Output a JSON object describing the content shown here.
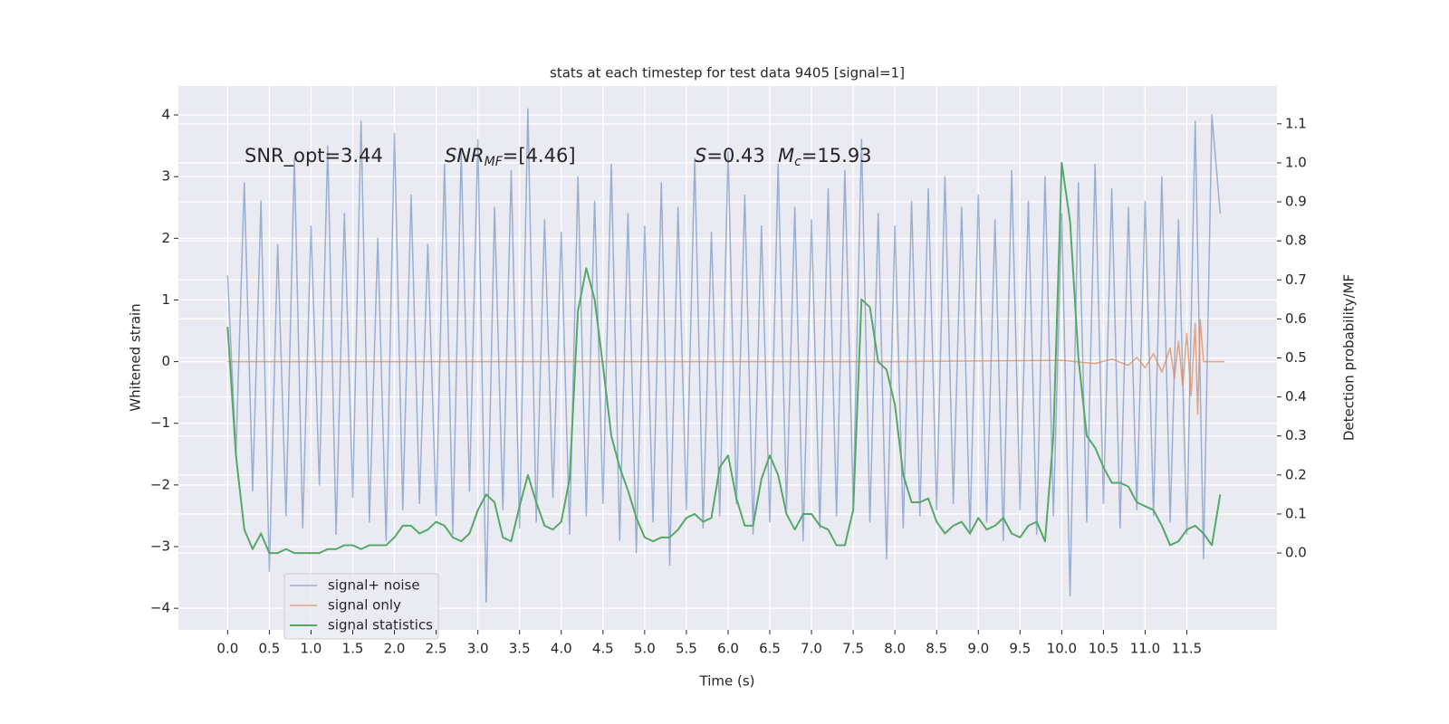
{
  "chart_data": {
    "type": "line",
    "title": "stats at each timestep for test data 9405 [signal=1]",
    "xlabel": "Time (s)",
    "ylabel": "Whitened strain",
    "y2label": "Detection probability/MF",
    "annotations": [
      {
        "parts": [
          "SNR_opt=3.44"
        ]
      },
      {
        "parts": [
          "SNR",
          "MF",
          "=[4.46]"
        ]
      },
      {
        "parts": [
          "S",
          "=0.43"
        ]
      },
      {
        "parts": [
          "M",
          "c",
          "=15.93"
        ]
      }
    ],
    "xlim": [
      -0.59,
      12.58
    ],
    "ylim": [
      -4.35,
      4.47
    ],
    "y2lim": [
      -0.197,
      1.197
    ],
    "xticks": [
      {
        "value": 0,
        "label": "0.0"
      },
      {
        "value": 0.5,
        "label": "0.5"
      },
      {
        "value": 1,
        "label": "1.0"
      },
      {
        "value": 1.5,
        "label": "1.5"
      },
      {
        "value": 2,
        "label": "2.0"
      },
      {
        "value": 2.5,
        "label": "2.5"
      },
      {
        "value": 3,
        "label": "3.0"
      },
      {
        "value": 3.5,
        "label": "3.5"
      },
      {
        "value": 4,
        "label": "4.0"
      },
      {
        "value": 4.5,
        "label": "4.5"
      },
      {
        "value": 5,
        "label": "5.0"
      },
      {
        "value": 5.5,
        "label": "5.5"
      },
      {
        "value": 6,
        "label": "6.0"
      },
      {
        "value": 6.5,
        "label": "6.5"
      },
      {
        "value": 7,
        "label": "7.0"
      },
      {
        "value": 7.5,
        "label": "7.5"
      },
      {
        "value": 8,
        "label": "8.0"
      },
      {
        "value": 8.5,
        "label": "8.5"
      },
      {
        "value": 9,
        "label": "9.0"
      },
      {
        "value": 9.5,
        "label": "9.5"
      },
      {
        "value": 10,
        "label": "10.0"
      },
      {
        "value": 10.5,
        "label": "10.5"
      },
      {
        "value": 11,
        "label": "11.0"
      },
      {
        "value": 11.5,
        "label": "11.5"
      }
    ],
    "yticks": [
      {
        "value": -4,
        "label": "−4"
      },
      {
        "value": -3,
        "label": "−3"
      },
      {
        "value": -2,
        "label": "−2"
      },
      {
        "value": -1,
        "label": "−1"
      },
      0,
      1,
      2,
      3,
      4
    ],
    "y2ticks": [
      {
        "value": 0,
        "label": "0.0"
      },
      {
        "value": 0.1,
        "label": "0.1"
      },
      {
        "value": 0.2,
        "label": "0.2"
      },
      {
        "value": 0.3,
        "label": "0.3"
      },
      {
        "value": 0.4,
        "label": "0.4"
      },
      {
        "value": 0.5,
        "label": "0.5"
      },
      {
        "value": 0.6,
        "label": "0.6"
      },
      {
        "value": 0.7,
        "label": "0.7"
      },
      {
        "value": 0.8,
        "label": "0.8"
      },
      {
        "value": 0.9,
        "label": "0.9"
      },
      {
        "value": 1,
        "label": "1.0"
      },
      {
        "value": 1.1,
        "label": "1.1"
      }
    ],
    "grid": true,
    "legend": "lower left",
    "series": [
      {
        "name": "signal+ noise",
        "color": "#4c72b0",
        "x": [
          0,
          0.1,
          0.2,
          0.3,
          0.4,
          0.5,
          0.6,
          0.7,
          0.8,
          0.9,
          1,
          1.1,
          1.2,
          1.3,
          1.4,
          1.5,
          1.6,
          1.7,
          1.8,
          1.9,
          2,
          2.1,
          2.2,
          2.3,
          2.4,
          2.5,
          2.6,
          2.7,
          2.8,
          2.9,
          3,
          3.1,
          3.2,
          3.3,
          3.4,
          3.5,
          3.6,
          3.7,
          3.8,
          3.9,
          4,
          4.1,
          4.2,
          4.3,
          4.4,
          4.5,
          4.6,
          4.7,
          4.8,
          4.9,
          5,
          5.1,
          5.2,
          5.3,
          5.4,
          5.5,
          5.6,
          5.7,
          5.8,
          5.9,
          6,
          6.1,
          6.2,
          6.3,
          6.4,
          6.5,
          6.6,
          6.7,
          6.8,
          6.9,
          7,
          7.1,
          7.2,
          7.3,
          7.4,
          7.5,
          7.6,
          7.7,
          7.8,
          7.9,
          8,
          8.1,
          8.2,
          8.3,
          8.4,
          8.5,
          8.6,
          8.7,
          8.8,
          8.9,
          9,
          9.1,
          9.2,
          9.3,
          9.4,
          9.5,
          9.6,
          9.7,
          9.8,
          9.9,
          10,
          10.1,
          10.2,
          10.3,
          10.4,
          10.5,
          10.6,
          10.7,
          10.8,
          10.9,
          11,
          11.1,
          11.2,
          11.3,
          11.4,
          11.5,
          11.6,
          11.7,
          11.8,
          11.9
        ],
        "values": [
          1.4,
          -1.5,
          2.9,
          -2.1,
          2.6,
          -3.4,
          1.9,
          -2.5,
          3.3,
          -2.7,
          2.2,
          -2.0,
          3.5,
          -2.8,
          2.4,
          -2.2,
          3.9,
          -2.6,
          2.0,
          -2.9,
          3.7,
          -2.4,
          2.7,
          -2.3,
          1.9,
          -2.5,
          3.2,
          -2.8,
          3.4,
          -2.1,
          3.6,
          -3.9,
          2.5,
          -2.4,
          3.1,
          -2.7,
          4.1,
          -2.6,
          2.3,
          -2.2,
          2.1,
          -2.8,
          3.0,
          -2.5,
          2.6,
          -2.3,
          3.2,
          -2.9,
          2.4,
          -3.1,
          2.2,
          -2.6,
          2.9,
          -3.3,
          2.5,
          -2.4,
          3.3,
          -2.7,
          2.1,
          -2.5,
          3.4,
          -2.3,
          2.7,
          -2.8,
          2.2,
          -2.6,
          3.2,
          -2.4,
          2.5,
          -2.9,
          2.3,
          -2.7,
          2.8,
          -2.5,
          3.1,
          -2.3,
          3.6,
          -2.6,
          2.4,
          -3.2,
          2.2,
          -2.7,
          2.6,
          -2.5,
          2.8,
          -2.4,
          3.0,
          -2.3,
          2.5,
          -2.8,
          2.7,
          -2.6,
          2.3,
          -2.9,
          3.1,
          -2.4,
          2.6,
          -2.8,
          3.0,
          -2.5,
          2.4,
          -3.8,
          2.9,
          -2.6,
          3.2,
          -2.3,
          2.8,
          -2.7,
          2.5,
          -2.4,
          2.6,
          -2.5,
          3.0,
          -2.6,
          2.3,
          -2.8,
          3.9,
          -3.2,
          4.0,
          2.4
        ]
      },
      {
        "name": "signal only",
        "color": "#dd8452",
        "x": [
          0,
          8,
          10,
          10.4,
          10.6,
          10.8,
          10.9,
          11,
          11.1,
          11.2,
          11.3,
          11.35,
          11.4,
          11.45,
          11.5,
          11.55,
          11.6,
          11.63,
          11.66,
          11.7,
          11.95
        ],
        "values": [
          0,
          0,
          0.02,
          -0.03,
          0.04,
          -0.06,
          0.07,
          -0.1,
          0.13,
          -0.17,
          0.22,
          -0.27,
          0.33,
          -0.39,
          0.46,
          -0.55,
          0.62,
          -0.85,
          0.68,
          0,
          0
        ]
      },
      {
        "name": "signal statistics",
        "color": "#55a868",
        "axis": "y2",
        "x": [
          0,
          0.1,
          0.2,
          0.3,
          0.4,
          0.5,
          0.6,
          0.7,
          0.8,
          0.9,
          1,
          1.1,
          1.2,
          1.3,
          1.4,
          1.5,
          1.6,
          1.7,
          1.8,
          1.9,
          2,
          2.1,
          2.2,
          2.3,
          2.4,
          2.5,
          2.6,
          2.7,
          2.8,
          2.9,
          3,
          3.1,
          3.2,
          3.3,
          3.4,
          3.5,
          3.6,
          3.7,
          3.8,
          3.9,
          4,
          4.1,
          4.2,
          4.3,
          4.4,
          4.5,
          4.6,
          4.7,
          4.8,
          4.9,
          5,
          5.1,
          5.2,
          5.3,
          5.4,
          5.5,
          5.6,
          5.7,
          5.8,
          5.9,
          6,
          6.1,
          6.2,
          6.3,
          6.4,
          6.5,
          6.6,
          6.7,
          6.8,
          6.9,
          7,
          7.1,
          7.2,
          7.3,
          7.4,
          7.5,
          7.6,
          7.7,
          7.8,
          7.9,
          8,
          8.1,
          8.2,
          8.3,
          8.4,
          8.5,
          8.6,
          8.7,
          8.8,
          8.9,
          9,
          9.1,
          9.2,
          9.3,
          9.4,
          9.5,
          9.6,
          9.7,
          9.8,
          9.9,
          10,
          10.1,
          10.2,
          10.3,
          10.4,
          10.5,
          10.6,
          10.7,
          10.8,
          10.9,
          11,
          11.1,
          11.2,
          11.3,
          11.4,
          11.5,
          11.6,
          11.7,
          11.8,
          11.9
        ],
        "values": [
          0.58,
          0.25,
          0.06,
          0.01,
          0.05,
          0.0,
          0.0,
          0.01,
          0.0,
          0.0,
          0.0,
          0.0,
          0.01,
          0.01,
          0.02,
          0.02,
          0.01,
          0.02,
          0.02,
          0.02,
          0.04,
          0.07,
          0.07,
          0.05,
          0.06,
          0.08,
          0.07,
          0.04,
          0.03,
          0.05,
          0.11,
          0.15,
          0.13,
          0.04,
          0.03,
          0.12,
          0.2,
          0.13,
          0.07,
          0.06,
          0.08,
          0.19,
          0.62,
          0.73,
          0.65,
          0.48,
          0.3,
          0.22,
          0.16,
          0.09,
          0.04,
          0.03,
          0.04,
          0.04,
          0.06,
          0.09,
          0.1,
          0.08,
          0.09,
          0.22,
          0.25,
          0.14,
          0.07,
          0.07,
          0.19,
          0.25,
          0.2,
          0.1,
          0.06,
          0.1,
          0.1,
          0.07,
          0.06,
          0.02,
          0.02,
          0.11,
          0.65,
          0.63,
          0.49,
          0.47,
          0.38,
          0.2,
          0.13,
          0.13,
          0.14,
          0.08,
          0.05,
          0.07,
          0.08,
          0.05,
          0.09,
          0.06,
          0.07,
          0.09,
          0.05,
          0.04,
          0.07,
          0.08,
          0.03,
          0.3,
          1.0,
          0.85,
          0.5,
          0.3,
          0.27,
          0.22,
          0.18,
          0.18,
          0.17,
          0.13,
          0.12,
          0.11,
          0.07,
          0.02,
          0.03,
          0.06,
          0.07,
          0.05,
          0.02,
          0.15
        ]
      }
    ]
  }
}
